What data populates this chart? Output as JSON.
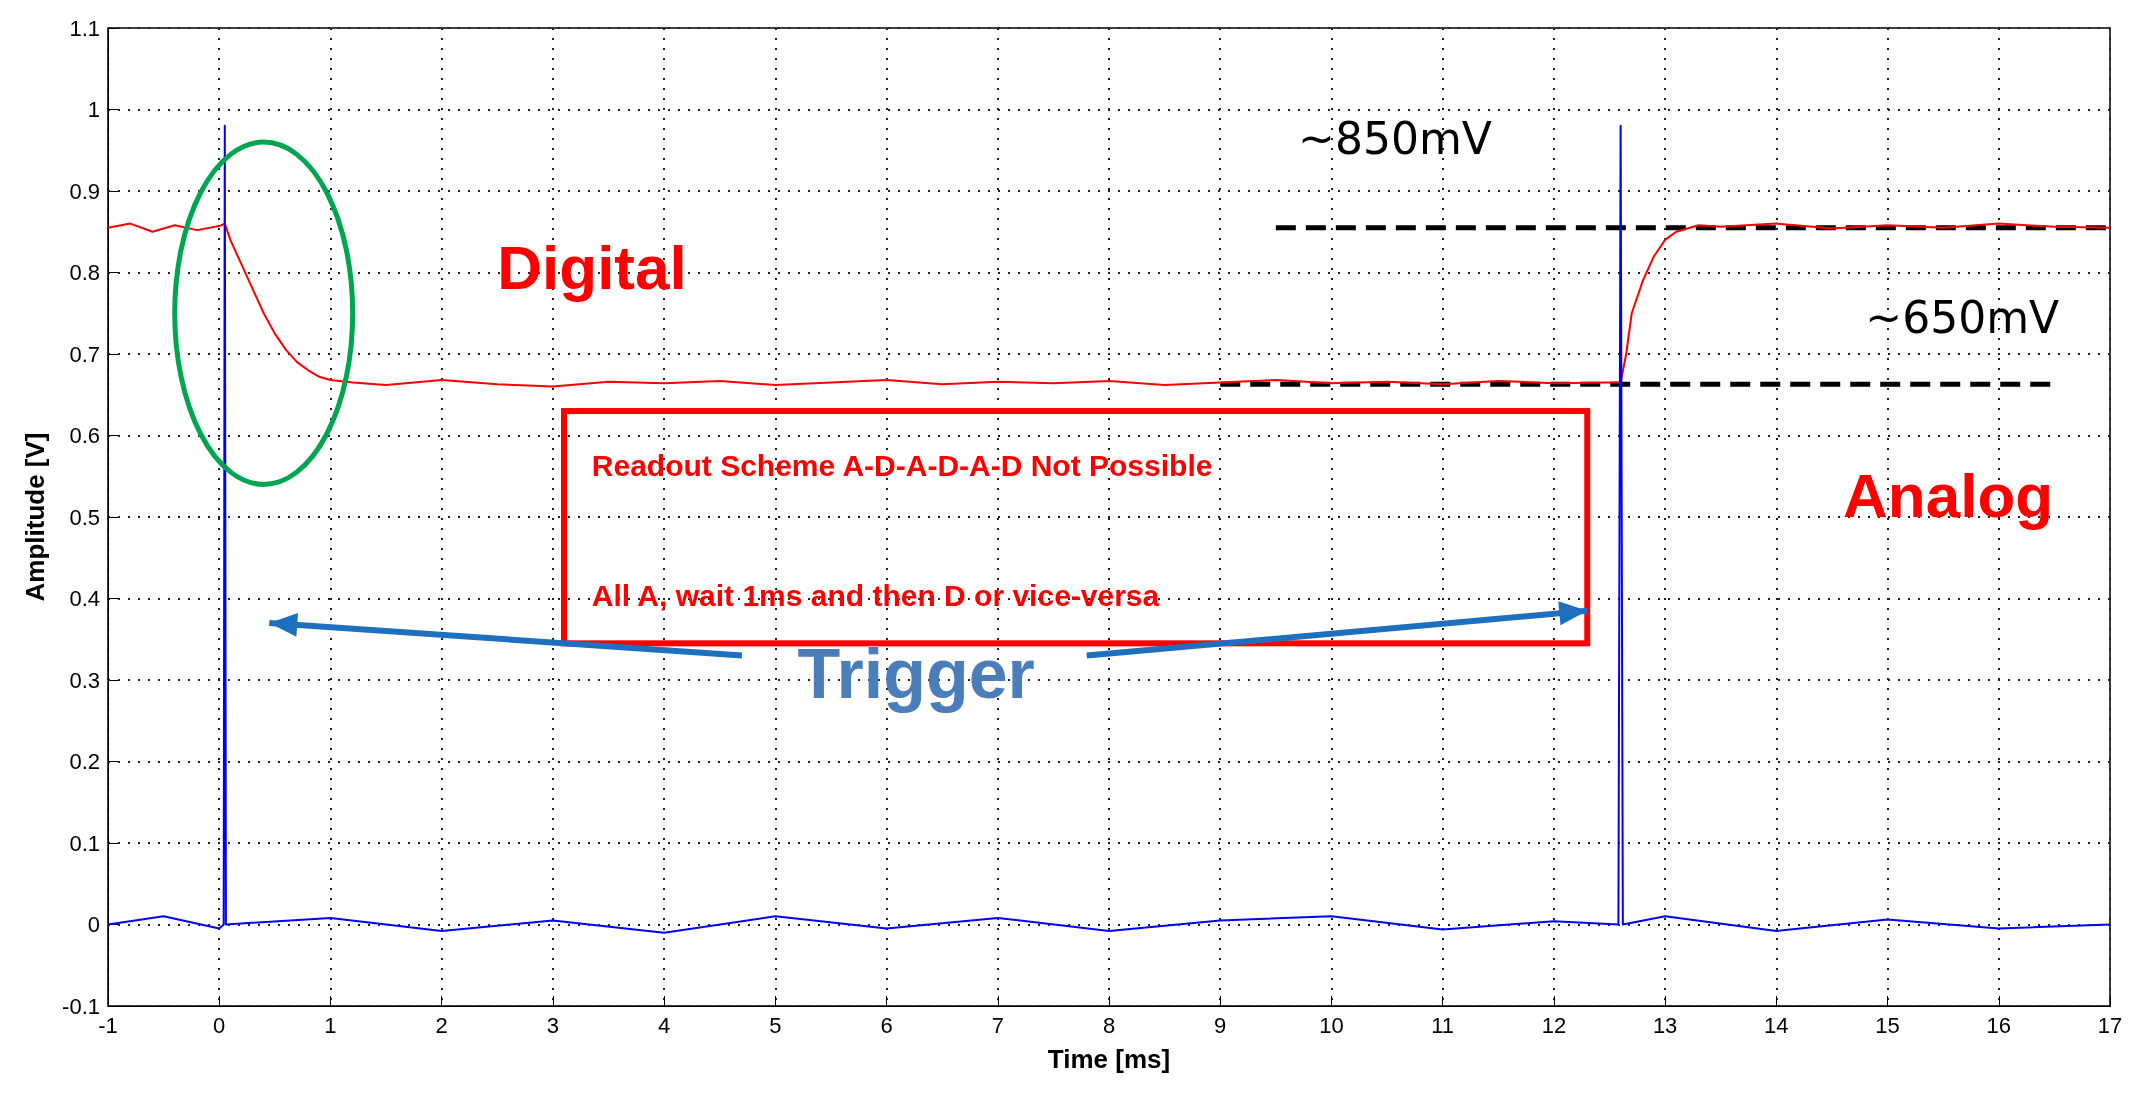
{
  "chart_data": {
    "type": "line",
    "xlabel": "Time [ms]",
    "ylabel": "Amplitude [V]",
    "xlim": [
      -1,
      17
    ],
    "xticks": [
      -1,
      0,
      1,
      2,
      3,
      4,
      5,
      6,
      7,
      8,
      9,
      10,
      11,
      12,
      13,
      14,
      15,
      16,
      17
    ],
    "ylim": [
      -0.1,
      1.1
    ],
    "yticks": [
      -0.1,
      0,
      0.1,
      0.2,
      0.3,
      0.4,
      0.5,
      0.6,
      0.7,
      0.8,
      0.9,
      1,
      1.1
    ],
    "grid": true,
    "marker": "none",
    "line_style": "solid",
    "series": [
      {
        "color": "#ff0000",
        "x": [
          -1,
          -0.8,
          -0.6,
          -0.4,
          -0.2,
          0,
          0.05,
          0.1,
          0.2,
          0.3,
          0.4,
          0.5,
          0.6,
          0.7,
          0.8,
          0.9,
          1,
          1.2,
          1.5,
          2,
          2.5,
          3,
          3.5,
          4,
          4.5,
          5,
          5.5,
          6,
          6.5,
          7,
          7.5,
          8,
          8.5,
          9,
          9.5,
          10,
          10.5,
          11,
          11.5,
          12,
          12.5,
          12.6,
          12.65,
          12.7,
          12.8,
          12.9,
          13,
          13.1,
          13.3,
          13.5,
          14,
          14.5,
          15,
          15.5,
          16,
          16.5,
          17
        ],
        "values": [
          0.855,
          0.86,
          0.85,
          0.858,
          0.852,
          0.857,
          0.86,
          0.84,
          0.81,
          0.78,
          0.75,
          0.725,
          0.705,
          0.69,
          0.68,
          0.672,
          0.668,
          0.665,
          0.662,
          0.668,
          0.663,
          0.66,
          0.666,
          0.664,
          0.667,
          0.662,
          0.665,
          0.668,
          0.663,
          0.666,
          0.664,
          0.667,
          0.662,
          0.665,
          0.668,
          0.664,
          0.666,
          0.663,
          0.667,
          0.664,
          0.665,
          0.665,
          0.7,
          0.75,
          0.79,
          0.82,
          0.84,
          0.85,
          0.858,
          0.856,
          0.86,
          0.854,
          0.858,
          0.855,
          0.86,
          0.856,
          0.855
        ]
      },
      {
        "color": "#0000ff",
        "x": [
          -1,
          -0.5,
          0,
          0.04,
          0.05,
          0.06,
          1,
          2,
          3,
          4,
          5,
          6,
          7,
          8,
          9,
          10,
          11,
          12,
          12.58,
          12.6,
          12.62,
          13,
          14,
          15,
          16,
          17
        ],
        "values": [
          0,
          0.01,
          -0.005,
          0,
          0.98,
          0,
          0.008,
          -0.008,
          0.005,
          -0.01,
          0.01,
          -0.005,
          0.008,
          -0.008,
          0.005,
          0.01,
          -0.006,
          0.004,
          0,
          0.98,
          0,
          0.01,
          -0.008,
          0.006,
          -0.005,
          0
        ]
      },
      {
        "color": "#000000",
        "line_style": "dashed",
        "x": [
          9.5,
          17
        ],
        "values": [
          0.855,
          0.855
        ]
      },
      {
        "color": "#000000",
        "line_style": "dashed",
        "x": [
          9,
          16.5
        ],
        "values": [
          0.663,
          0.663
        ]
      }
    ],
    "annotations": [
      "~850mV",
      "~650mV",
      "Digital",
      "Analog",
      "Readout Scheme A-D-A-D-A-D Not Possible",
      "All A, wait 1ms and then D or vice-versa",
      "Trigger"
    ]
  }
}
